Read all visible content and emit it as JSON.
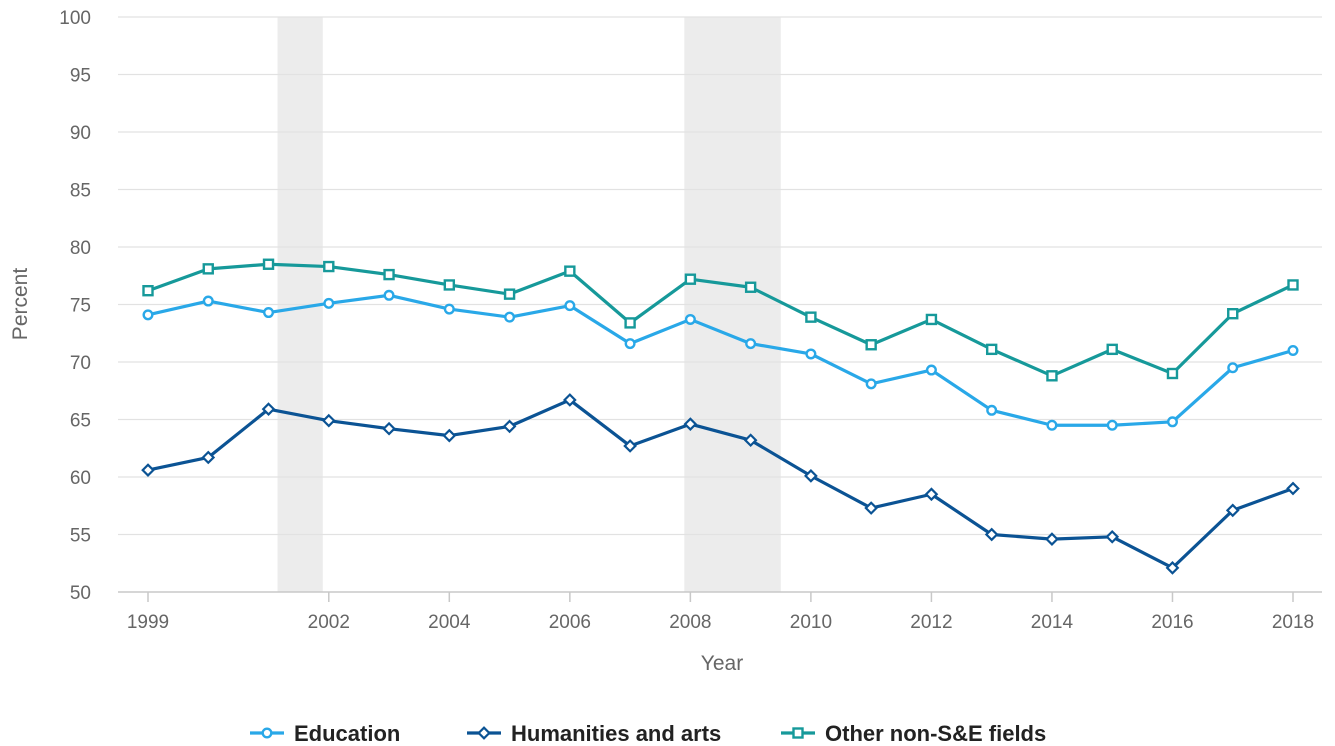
{
  "chart_data": {
    "type": "line",
    "xlabel": "Year",
    "ylabel": "Percent",
    "ylim": [
      50,
      100
    ],
    "yticks": [
      50,
      55,
      60,
      65,
      70,
      75,
      80,
      85,
      90,
      95,
      100
    ],
    "xlim": [
      1999,
      2018
    ],
    "xticks": [
      1999,
      2002,
      2004,
      2006,
      2008,
      2010,
      2012,
      2014,
      2016,
      2018
    ],
    "grid": "horizontal",
    "legend_position": "bottom-center",
    "shaded_periods": [
      [
        2001.15,
        2001.9
      ],
      [
        2007.9,
        2009.5
      ]
    ],
    "x": [
      1999,
      2000,
      2001,
      2002,
      2003,
      2004,
      2005,
      2006,
      2007,
      2008,
      2009,
      2010,
      2011,
      2012,
      2013,
      2014,
      2015,
      2016,
      2017,
      2018
    ],
    "series": [
      {
        "name": "Education",
        "color": "#29a8e8",
        "marker": "circle",
        "values": [
          74.1,
          75.3,
          74.3,
          75.1,
          75.8,
          74.6,
          73.9,
          74.9,
          71.6,
          73.7,
          71.6,
          70.7,
          68.1,
          69.3,
          65.8,
          64.5,
          64.5,
          64.8,
          69.5,
          71.0
        ]
      },
      {
        "name": "Humanities and arts",
        "color": "#0b5394",
        "marker": "diamond",
        "values": [
          60.6,
          61.7,
          65.9,
          64.9,
          64.2,
          63.6,
          64.4,
          66.7,
          62.7,
          64.6,
          63.2,
          60.1,
          57.3,
          58.5,
          55.0,
          54.6,
          54.8,
          52.1,
          57.1,
          59.0
        ]
      },
      {
        "name": "Other non-S&E fields",
        "color": "#16999a",
        "marker": "square",
        "values": [
          76.2,
          78.1,
          78.5,
          78.3,
          77.6,
          76.7,
          75.9,
          77.9,
          73.4,
          77.2,
          76.5,
          73.9,
          71.5,
          73.7,
          71.1,
          68.8,
          71.1,
          69.0,
          74.2,
          76.7
        ]
      }
    ]
  }
}
